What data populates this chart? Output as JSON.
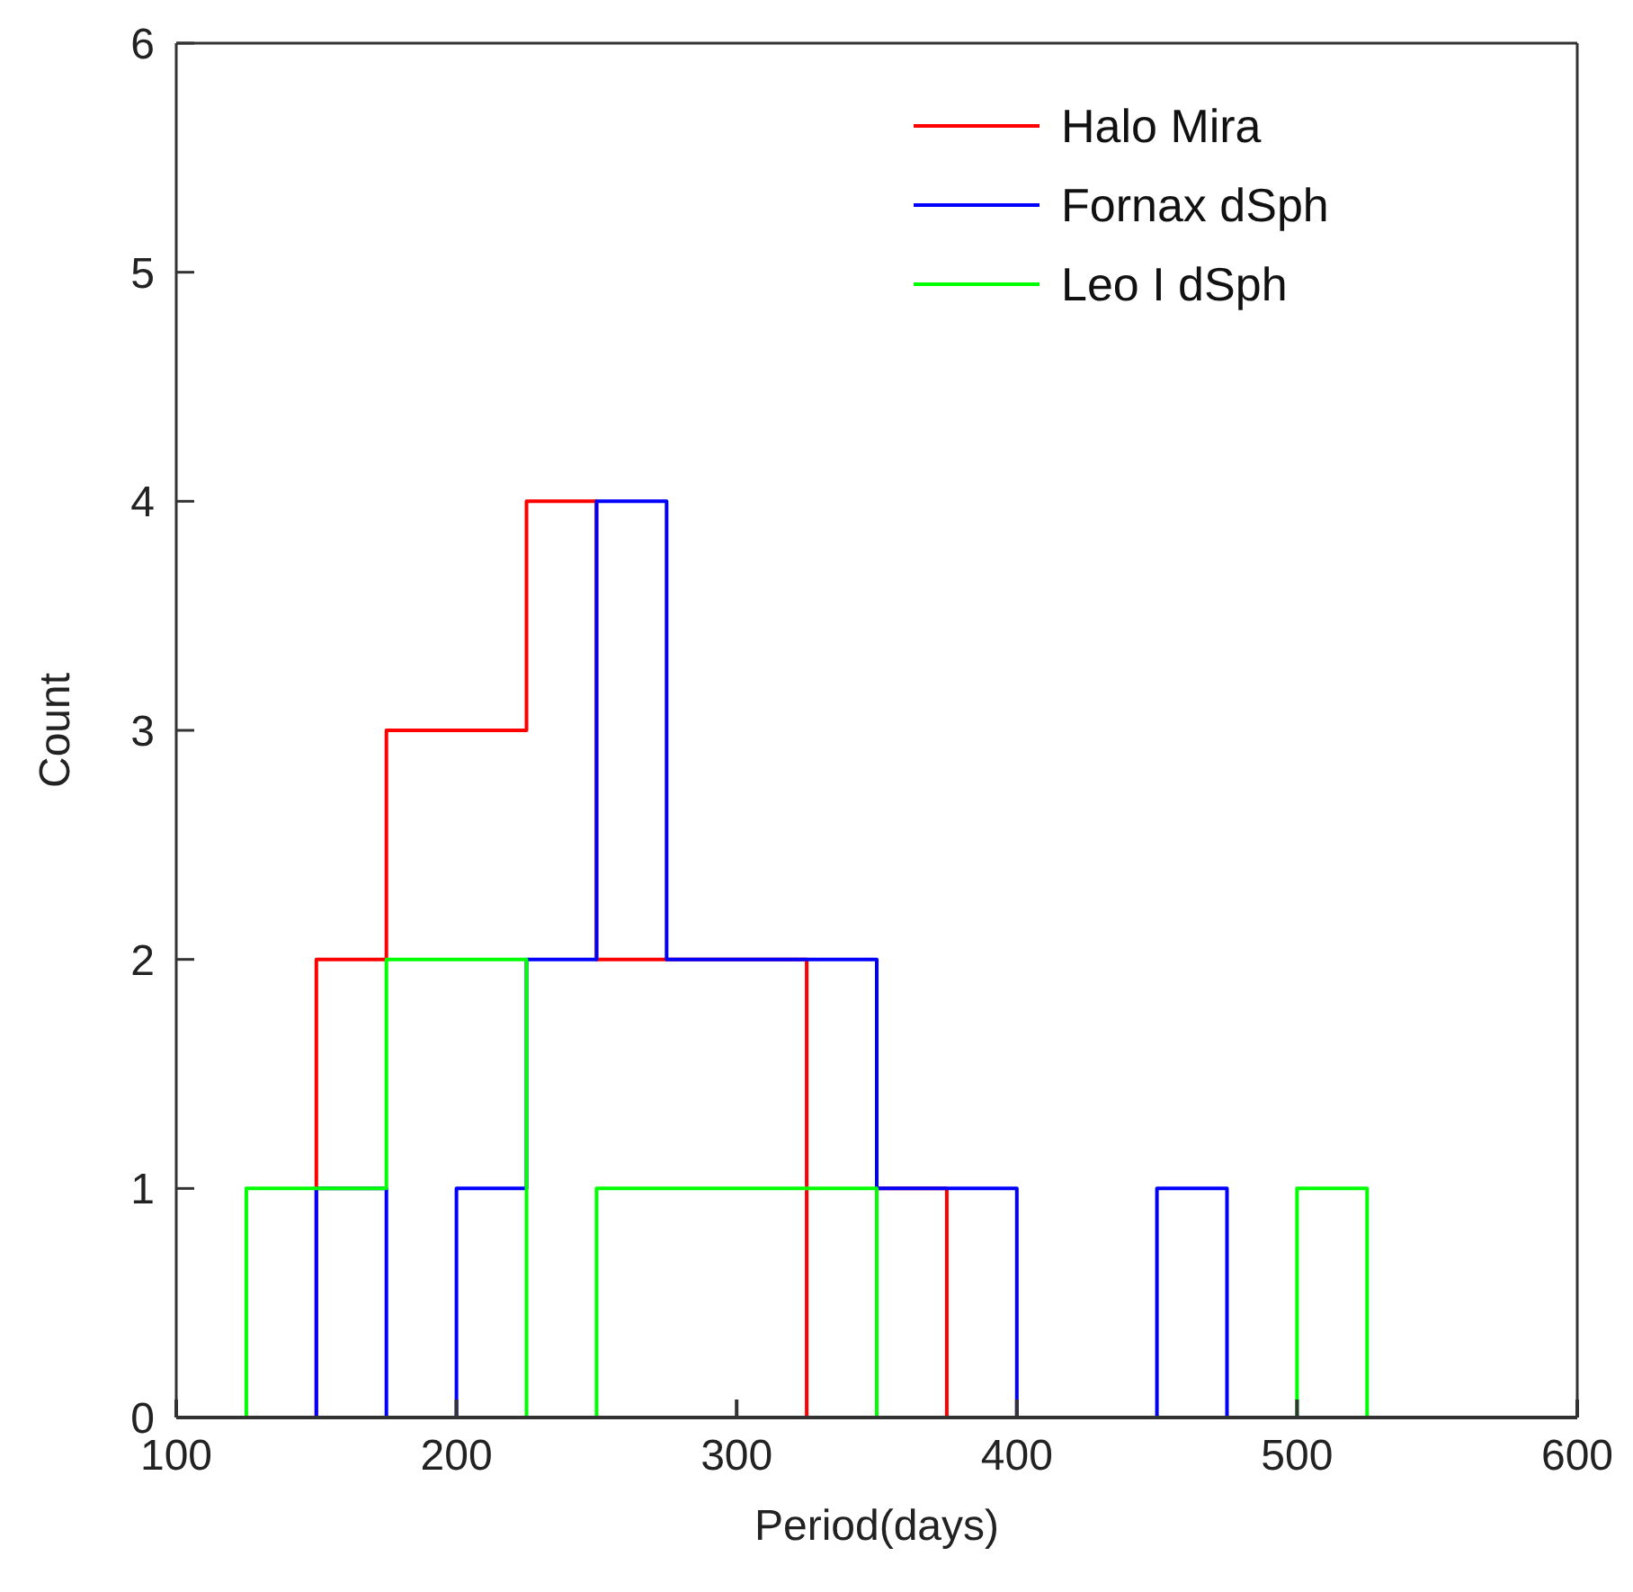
{
  "chart_data": {
    "type": "histogram",
    "xlabel": "Period(days)",
    "ylabel": "Count",
    "bins": [
      125,
      150,
      175,
      200,
      225,
      250,
      275,
      300,
      325,
      350,
      375,
      400,
      425,
      450,
      475,
      500,
      525
    ],
    "series": [
      {
        "name": "Halo Mira",
        "color": "#ff0000",
        "bins": [
          150,
          175,
          200,
          225,
          250,
          275,
          300,
          325,
          350,
          375
        ],
        "values": [
          2,
          3,
          3,
          4,
          2,
          2,
          2,
          0,
          1
        ]
      },
      {
        "name": "Fornax dSph",
        "color": "#0000ff",
        "bins": [
          150,
          175,
          200,
          225,
          250,
          275,
          300,
          325,
          350,
          375,
          400,
          425,
          450,
          475
        ],
        "values": [
          1,
          0,
          1,
          2,
          4,
          2,
          2,
          2,
          1,
          1,
          0,
          0,
          1
        ]
      },
      {
        "name": "Leo I dSph",
        "color": "#00ff00",
        "values": [
          1,
          1,
          2,
          2,
          0,
          1,
          1,
          1,
          1,
          0,
          0,
          0,
          0,
          0,
          0,
          1
        ]
      }
    ],
    "xlim": [
      100,
      600
    ],
    "xticks": [
      100,
      200,
      300,
      400,
      500,
      600
    ],
    "ylim": [
      0,
      6
    ],
    "yticks": [
      0,
      1,
      2,
      3,
      4,
      5,
      6
    ],
    "legend": "top right"
  }
}
